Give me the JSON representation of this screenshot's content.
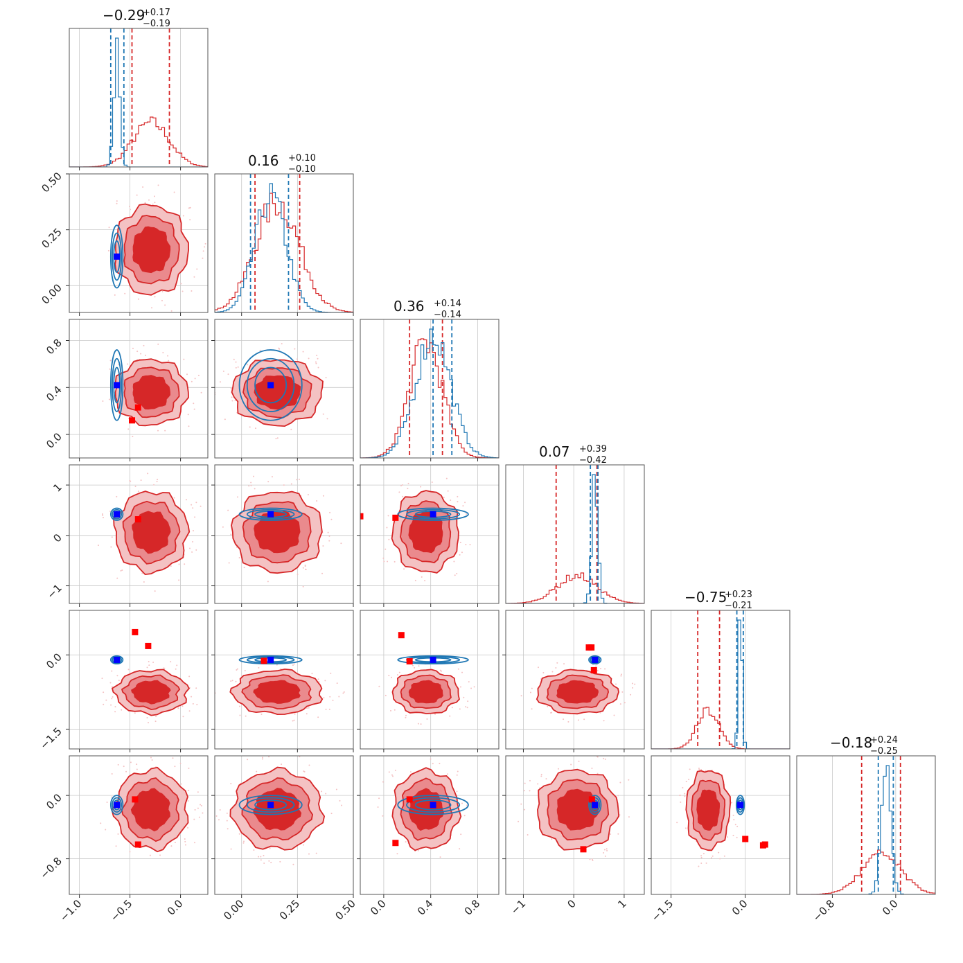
{
  "chart_data": {
    "type": "corner",
    "grid": true,
    "colors": {
      "red": "#d62728",
      "blue": "#1f77b4",
      "red_fill_light": "#f4c2c3",
      "red_fill_mid": "#ea8a8d",
      "red_fill_dark": "#d62728",
      "marker_red": "#ff0000",
      "marker_blue": "#0000ff"
    },
    "parameters": [
      {
        "range": [
          -1.1,
          0.27
        ],
        "ticks": [
          -1.0,
          -0.5,
          0.0
        ],
        "tick_labels": [
          "−1.0",
          "−0.5",
          "0.0"
        ],
        "title": {
          "median": "−0.29",
          "plus": "+0.17",
          "minus": "−0.19"
        },
        "red": {
          "mean": -0.29,
          "sd": 0.18,
          "q": [
            -0.48,
            -0.11
          ]
        },
        "blue": {
          "mean": -0.63,
          "sd": 0.03,
          "q": [
            -0.69,
            -0.56
          ]
        }
      },
      {
        "range": [
          -0.12,
          0.5
        ],
        "ticks": [
          0.0,
          0.25,
          0.5
        ],
        "tick_labels": [
          "0.00",
          "0.25",
          "0.50"
        ],
        "title": {
          "median": "0.16",
          "plus": "+0.10",
          "minus": "−0.10"
        },
        "red": {
          "mean": 0.16,
          "sd": 0.1,
          "q": [
            0.06,
            0.26
          ]
        },
        "blue": {
          "mean": 0.13,
          "sd": 0.07,
          "q": [
            0.04,
            0.21
          ]
        }
      },
      {
        "range": [
          -0.2,
          0.98
        ],
        "ticks": [
          0.0,
          0.4,
          0.8
        ],
        "tick_labels": [
          "0.0",
          "0.4",
          "0.8"
        ],
        "title": {
          "median": "0.36",
          "plus": "+0.14",
          "minus": "−0.14"
        },
        "red": {
          "mean": 0.36,
          "sd": 0.14,
          "q": [
            0.22,
            0.5
          ]
        },
        "blue": {
          "mean": 0.42,
          "sd": 0.15,
          "q": [
            0.42,
            0.58
          ]
        }
      },
      {
        "range": [
          -1.35,
          1.4
        ],
        "ticks": [
          -1,
          0,
          1
        ],
        "tick_labels": [
          "−1",
          "0",
          "1"
        ],
        "title": {
          "median": "0.07",
          "plus": "+0.39",
          "minus": "−0.42"
        },
        "red": {
          "mean": 0.07,
          "sd": 0.4,
          "q": [
            -0.35,
            0.46
          ]
        },
        "blue": {
          "mean": 0.42,
          "sd": 0.06,
          "q": [
            0.33,
            0.48
          ]
        }
      },
      {
        "range": [
          -1.9,
          0.9
        ],
        "ticks": [
          -1.5,
          0.0
        ],
        "tick_labels": [
          "−1.5",
          "0.0"
        ],
        "title": {
          "median": "−0.75",
          "plus": "+0.23",
          "minus": "−0.21"
        },
        "red": {
          "mean": -0.75,
          "sd": 0.22,
          "q": [
            -0.96,
            -0.52
          ]
        },
        "blue": {
          "mean": -0.1,
          "sd": 0.04,
          "q": [
            -0.17,
            -0.04
          ]
        }
      },
      {
        "range": [
          -1.25,
          0.5
        ],
        "ticks": [
          -0.8,
          0.0
        ],
        "tick_labels": [
          "−0.8",
          "0.0"
        ],
        "title": {
          "median": "−0.18",
          "plus": "+0.24",
          "minus": "−0.25"
        },
        "red": {
          "mean": -0.18,
          "sd": 0.25,
          "q": [
            -0.43,
            0.06
          ]
        },
        "blue": {
          "mean": -0.12,
          "sd": 0.06,
          "q": [
            -0.22,
            -0.03
          ]
        }
      }
    ],
    "red_markers": [
      [
        -0.41,
        -0.29
      ],
      [
        0.23,
        0.12,
        0.11,
        0.14,
        0.18
      ],
      [
        0.32,
        0.36,
        0.38,
        0.35,
        0.32
      ],
      [
        0.46,
        0.18,
        -0.32,
        -0.12,
        0.4,
        -0.13,
        0.15,
        0.15,
        -0.31
      ],
      [
        -0.05,
        -0.62,
        -0.63,
        -0.68,
        -0.05,
        -0.6,
        -0.68,
        -0.05,
        -0.63,
        -0.62,
        -0.55,
        -0.62,
        -0.65
      ],
      [
        -0.08,
        -0.3,
        -0.2,
        -0.42,
        -0.08,
        -0.42,
        -0.1,
        -0.3,
        -0.12,
        -0.4,
        -0.45,
        -0.1,
        -0.42,
        -0.18,
        -0.3,
        -0.22,
        -0.08,
        -0.3,
        -0.6,
        -0.92,
        -0.3
      ]
    ],
    "red_marker_x": [
      [
        -0.48,
        -0.41
      ],
      [
        -0.42,
        -0.48,
        -0.33,
        -0.2,
        -0.28
      ],
      [
        -0.42,
        -0.33,
        -0.2,
        0.1,
        0.21
      ],
      [
        -0.45,
        -0.32,
        -0.2,
        0.1,
        0.15,
        0.22,
        0.3,
        0.35,
        0.4
      ],
      [
        -0.45,
        -0.42,
        -0.32,
        -0.2,
        0.22,
        0.1,
        0.19,
        0.36,
        0.36,
        0.4,
        0.0,
        -0.25,
        -0.35
      ],
      [
        -0.33,
        -0.45,
        -0.43,
        -0.2,
        0.1,
        0.2,
        0.35,
        0.23,
        0.2,
        0.18,
        0.1,
        0.05,
        0.35,
        0.42,
        0.4,
        0.33,
        -0.4,
        -0.25,
        -0.05,
        -0.8,
        -0.35
      ]
    ],
    "blue_markers": [
      [
        -0.63,
        0.13
      ],
      [
        -0.63,
        0.42
      ],
      [
        -0.63,
        0.42
      ],
      [
        -0.63,
        -0.1
      ],
      [
        -0.63,
        -0.12
      ]
    ],
    "blue_marker_grid": [
      [
        [
          -0.63,
          0.13
        ]
      ],
      [
        [
          -0.63,
          0.42
        ],
        [
          0.13,
          0.42
        ]
      ],
      [
        [
          -0.63,
          0.42
        ],
        [
          0.13,
          0.42
        ],
        [
          0.42,
          0.42
        ]
      ],
      [
        [
          -0.63,
          -0.1
        ],
        [
          0.13,
          -0.1
        ],
        [
          0.42,
          -0.1
        ],
        [
          0.42,
          -0.1
        ]
      ],
      [
        [
          -0.63,
          -0.12
        ],
        [
          0.13,
          -0.12
        ],
        [
          0.42,
          -0.12
        ],
        [
          0.42,
          -0.12
        ],
        [
          -0.1,
          -0.12
        ]
      ]
    ]
  }
}
